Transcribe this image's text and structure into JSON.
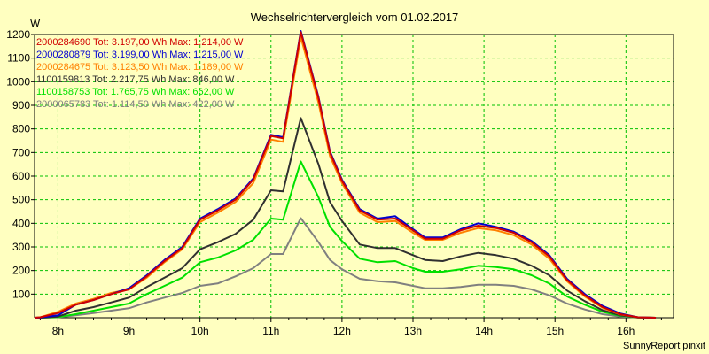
{
  "chart_data": {
    "type": "line",
    "title": "Wechselrichtervergleich vom 01.02.2017",
    "ylabel": "W",
    "xlabel": "",
    "ylim": [
      0,
      1200
    ],
    "xlim": [
      7.67,
      16.67
    ],
    "grid": true,
    "legend_position": "top-left",
    "x_ticks": [
      {
        "value": 8,
        "label": "8h"
      },
      {
        "value": 9,
        "label": "9h"
      },
      {
        "value": 10,
        "label": "10h"
      },
      {
        "value": 11,
        "label": "11h"
      },
      {
        "value": 12,
        "label": "12h"
      },
      {
        "value": 13,
        "label": "13h"
      },
      {
        "value": 14,
        "label": "14h"
      },
      {
        "value": 15,
        "label": "15h"
      },
      {
        "value": 16,
        "label": "16h"
      }
    ],
    "y_ticks": [
      100,
      200,
      300,
      400,
      500,
      600,
      700,
      800,
      900,
      1000,
      1100,
      1200
    ],
    "x": [
      7.67,
      7.75,
      8.0,
      8.25,
      8.5,
      8.75,
      9.0,
      9.25,
      9.5,
      9.75,
      10.0,
      10.25,
      10.5,
      10.75,
      11.0,
      11.17,
      11.42,
      11.67,
      11.83,
      12.0,
      12.25,
      12.5,
      12.75,
      13.0,
      13.17,
      13.42,
      13.67,
      13.92,
      14.17,
      14.42,
      14.67,
      14.92,
      15.17,
      15.42,
      15.67,
      15.92,
      16.17,
      16.42
    ],
    "series": [
      {
        "name": "2000284690 Tot: 3.197,00 Wh Max: 1.214,00 W",
        "color": "#d00000",
        "values": [
          0,
          2,
          20,
          55,
          75,
          100,
          120,
          175,
          240,
          295,
          415,
          455,
          500,
          585,
          770,
          760,
          1210,
          930,
          700,
          580,
          455,
          415,
          420,
          370,
          335,
          335,
          370,
          390,
          380,
          360,
          320,
          260,
          160,
          95,
          45,
          15,
          2,
          0
        ]
      },
      {
        "name": "2000280879 Tot: 3.199,00 Wh Max: 1.215,00 W",
        "color": "#0000d0",
        "values": [
          0,
          1,
          10,
          55,
          75,
          100,
          125,
          180,
          245,
          300,
          420,
          460,
          505,
          590,
          775,
          765,
          1215,
          935,
          705,
          585,
          460,
          420,
          430,
          375,
          340,
          340,
          375,
          400,
          385,
          365,
          325,
          265,
          165,
          100,
          50,
          18,
          2,
          0
        ]
      },
      {
        "name": "2000284675 Tot: 3.123,50 Wh Max: 1.189,00 W",
        "color": "#ff8000",
        "values": [
          0,
          2,
          25,
          60,
          80,
          105,
          120,
          170,
          235,
          290,
          405,
          445,
          490,
          570,
          755,
          745,
          1189,
          910,
          685,
          570,
          445,
          405,
          410,
          360,
          330,
          330,
          360,
          380,
          370,
          350,
          310,
          250,
          155,
          90,
          42,
          14,
          2,
          0
        ]
      },
      {
        "name": "1100159813 Tot: 2.217,75 Wh Max: 846,00 W",
        "color": "#303030",
        "values": [
          0,
          0,
          5,
          30,
          45,
          65,
          85,
          130,
          170,
          210,
          290,
          320,
          355,
          415,
          540,
          535,
          846,
          650,
          490,
          410,
          310,
          295,
          295,
          265,
          245,
          240,
          260,
          275,
          265,
          250,
          220,
          180,
          115,
          70,
          32,
          10,
          1,
          0
        ]
      },
      {
        "name": "1100158753 Tot: 1.765,75 Wh Max: 662,00 W",
        "color": "#00e000",
        "values": [
          0,
          0,
          3,
          15,
          30,
          45,
          60,
          100,
          135,
          170,
          235,
          255,
          285,
          330,
          420,
          415,
          662,
          510,
          385,
          325,
          250,
          235,
          240,
          210,
          195,
          195,
          205,
          220,
          215,
          205,
          180,
          145,
          90,
          55,
          25,
          8,
          1,
          0
        ]
      },
      {
        "name": "2000065783 Tot: 1.114,50 Wh Max: 422,00 W",
        "color": "#808080",
        "values": [
          0,
          0,
          2,
          10,
          20,
          30,
          40,
          65,
          85,
          105,
          135,
          145,
          175,
          210,
          270,
          270,
          422,
          320,
          245,
          205,
          165,
          155,
          150,
          135,
          125,
          125,
          130,
          140,
          140,
          135,
          120,
          95,
          60,
          35,
          15,
          5,
          1,
          0
        ]
      }
    ]
  },
  "footer_text": "SunnyReport pinxit"
}
